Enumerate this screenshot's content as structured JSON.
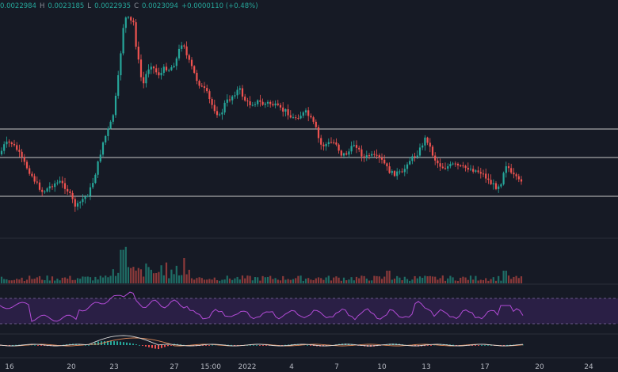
{
  "legend": {
    "open": "0.0022984",
    "high_label": "H",
    "high": "0.0023185",
    "low_label": "L",
    "low": "0.0022935",
    "close_label": "C",
    "close": "0.0023094",
    "change": "+0.0000110 (+0.48%)"
  },
  "colors": {
    "background": "#161a25",
    "up": "#26a69a",
    "down": "#ef5350",
    "rsi_line": "#b24bd6",
    "rsi_band": "#2a1f45",
    "macd_line": "#d8d8d8",
    "signal_line": "#e08a5a",
    "horizontal_lines": "#c8c8c8"
  },
  "time_axis": {
    "labels": [
      "16",
      "20",
      "23",
      "27",
      "15:00",
      "2022",
      "4",
      "7",
      "10",
      "13",
      "17",
      "20",
      "24"
    ]
  },
  "chart_data": {
    "type": "candlestick",
    "panes": [
      "price",
      "volume",
      "rsi",
      "macd"
    ],
    "horizontal_lines": 3,
    "note_levels": "price axis values not visible"
  }
}
